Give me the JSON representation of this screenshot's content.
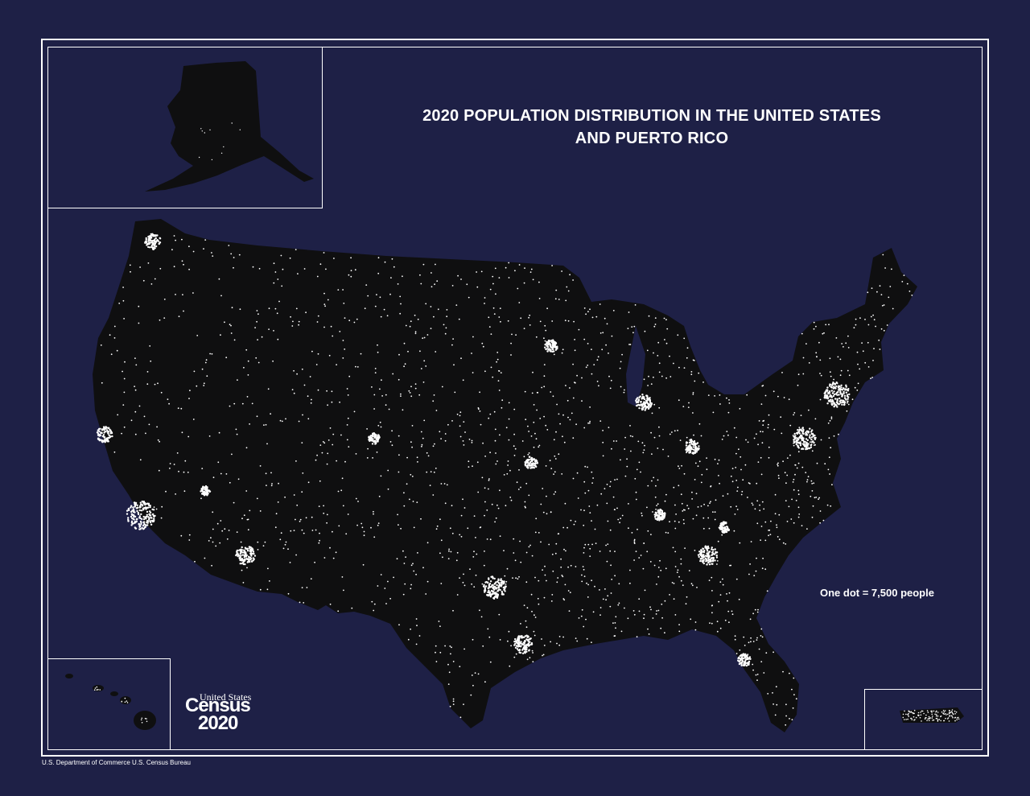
{
  "map": {
    "title_line1": "2020 POPULATION DISTRIBUTION IN THE UNITED STATES",
    "title_line2": "AND PUERTO RICO",
    "legend": "One dot = 7,500 people",
    "footer": "U.S. Department of Commerce  U.S. Census Bureau",
    "colors": {
      "background": "#1e2046",
      "land": "#0f0f10",
      "dots": "#ffffff",
      "frame": "#ffffff"
    }
  },
  "logo": {
    "top": "United States",
    "name": "Census",
    "year": "2020"
  }
}
